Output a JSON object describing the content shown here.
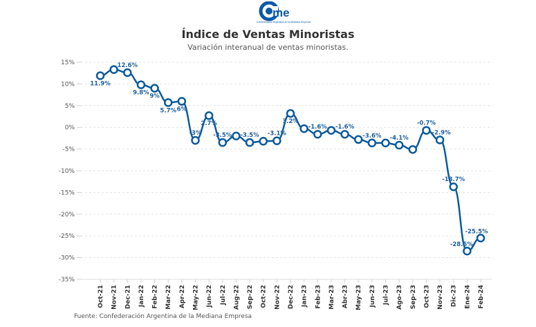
{
  "logo": {
    "text": "came",
    "tagline": "Confederación Argentina de la Mediana Empresa",
    "color": "#0a5aa8"
  },
  "chart_data": {
    "type": "line",
    "title": "Índice de Ventas Minoristas",
    "subtitle": "Variación interanual de ventas minoristas.",
    "xlabel": "",
    "ylabel": "",
    "ylim": [
      -35,
      15
    ],
    "yticks": [
      15,
      10,
      5,
      0,
      -5,
      -10,
      -15,
      -20,
      -25,
      -30,
      -35
    ],
    "ytick_labels": [
      "15%",
      "10%",
      "5%",
      "0%",
      "-5%",
      "-10%",
      "-15%",
      "-20%",
      "-25%",
      "-30%",
      "-35%"
    ],
    "grid": true,
    "color": "#0b5a9c",
    "categories": [
      "Oct-21",
      "Nov-21",
      "Dec-21",
      "Jan-22",
      "Feb-22",
      "Mar-22",
      "Apr-22",
      "May-22",
      "Jun-22",
      "Jul-22",
      "Aug-22",
      "Sep-22",
      "Oct-22",
      "Nov-22",
      "Dec-22",
      "Jan-23",
      "Feb-23",
      "Mar-23",
      "Abr-23",
      "May-23",
      "Jun-23",
      "Jul-23",
      "Ago-23",
      "Sep-23",
      "Oct-23",
      "Nov-23",
      "Dic-23",
      "Ene-24",
      "Feb-24"
    ],
    "values": [
      11.9,
      13.3,
      12.6,
      9.8,
      9.0,
      5.7,
      6.0,
      -3.0,
      2.7,
      -3.5,
      -2.0,
      -3.5,
      -3.2,
      -3.1,
      3.2,
      -0.3,
      -1.6,
      -0.7,
      -1.6,
      -2.8,
      -3.6,
      -3.6,
      -4.1,
      -5.1,
      -0.7,
      -2.9,
      -13.7,
      -28.5,
      -25.5
    ],
    "data_labels": [
      "11.9%",
      "",
      "12.6%",
      "9.8%",
      "9%",
      "5.7%",
      "6%",
      "-3%",
      "2.7%",
      "-3.5%",
      "",
      "-3.5%",
      "",
      "-3.1%",
      "3.2%",
      "",
      "-1.6%",
      "",
      "-1.6%",
      "",
      "-3.6%",
      "",
      "-4.1%",
      "",
      "-0.7%",
      "-2.9%",
      "-13.7%",
      "-28.5%",
      "-25.5%"
    ]
  },
  "source": "Fuente: Confederación Argentina de la Mediana Empresa"
}
